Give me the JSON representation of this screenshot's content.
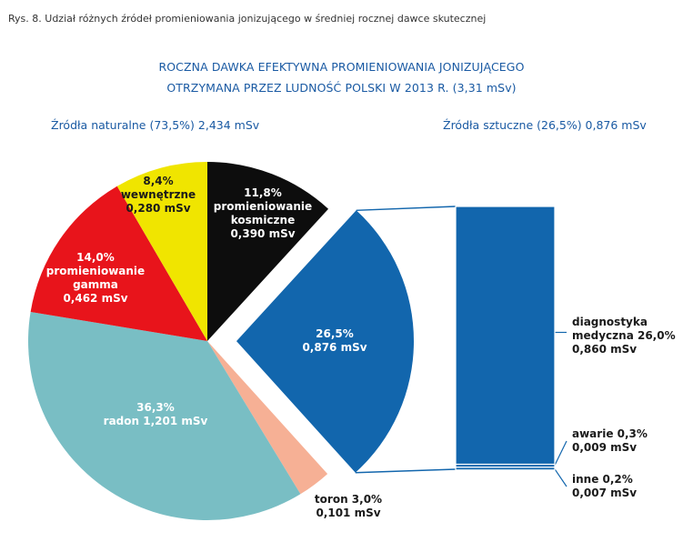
{
  "caption": "Rys. 8. Udział różnych źródeł promieniowania jonizującego w średniej rocznej dawce skutecznej",
  "title_line1": "ROCZNA DAWKA EFEKTYWNA PROMIENIOWANIA JONIZUJĄCEGO",
  "title_line2": "OTRZYMANA PRZEZ LUDNOŚĆ POLSKI W 2013 R. (3,31 mSv)",
  "group_natural": "Źródła naturalne (73,5%) 2,434 mSv",
  "group_artificial": "Źródła sztuczne (26,5%) 0,876 mSv",
  "chart_data": [
    {
      "type": "pie",
      "title": "ROCZNA DAWKA EFEKTYWNA PROMIENIOWANIA JONIZUJĄCEGO OTRZYMANA PRZEZ LUDNOŚĆ POLSKI W 2013 R. (3,31 mSv)",
      "total_msv": 3.31,
      "slices": [
        {
          "name": "promieniowanie kosmiczne",
          "percent": 11.8,
          "dose_msv": 0.39,
          "color": "#0d0d0d",
          "label_color": "#ffffff",
          "label_lines": [
            "11,8%",
            "promieniowanie",
            "kosmiczne",
            "0,390 mSv"
          ]
        },
        {
          "name": "sztuczne",
          "percent": 26.5,
          "dose_msv": 0.876,
          "color": "#1266ad",
          "label_color": "#ffffff",
          "exploded": true,
          "label_lines": [
            "26,5%",
            "0,876 mSv"
          ]
        },
        {
          "name": "toron",
          "percent": 3.0,
          "dose_msv": 0.101,
          "color": "#f6b095",
          "label_color": "#1a1a1a",
          "label_lines": [
            "toron 3,0%",
            "0,101 mSv"
          ]
        },
        {
          "name": "radon",
          "percent": 36.3,
          "dose_msv": 1.201,
          "color": "#79bec4",
          "label_color": "#ffffff",
          "label_lines": [
            "36,3%",
            "radon 1,201 mSv"
          ]
        },
        {
          "name": "promieniowanie gamma",
          "percent": 14.0,
          "dose_msv": 0.462,
          "color": "#e8141b",
          "label_color": "#ffffff",
          "label_lines": [
            "14,0%",
            "promieniowanie",
            "gamma",
            "0,462 mSv"
          ]
        },
        {
          "name": "wewnętrzne",
          "percent": 8.4,
          "dose_msv": 0.28,
          "color": "#f0e500",
          "label_color": "#1a1a1a",
          "label_lines": [
            "8,4%",
            "wewnętrzne",
            "0,280 mSv"
          ]
        }
      ]
    },
    {
      "type": "bar",
      "stacked": true,
      "title": "Źródła sztuczne (26,5%) 0,876 mSv",
      "color": "#1266ad",
      "segments": [
        {
          "name": "diagnostyka medyczna",
          "percent": 26.0,
          "dose_msv": 0.86,
          "label_lines": [
            "diagnostyka",
            "medyczna 26,0%",
            "0,860 mSv"
          ]
        },
        {
          "name": "awarie",
          "percent": 0.3,
          "dose_msv": 0.009,
          "label_lines": [
            "awarie 0,3%",
            "0,009 mSv"
          ]
        },
        {
          "name": "inne",
          "percent": 0.2,
          "dose_msv": 0.007,
          "label_lines": [
            "inne 0,2%",
            "0,007 mSv"
          ]
        }
      ]
    }
  ]
}
